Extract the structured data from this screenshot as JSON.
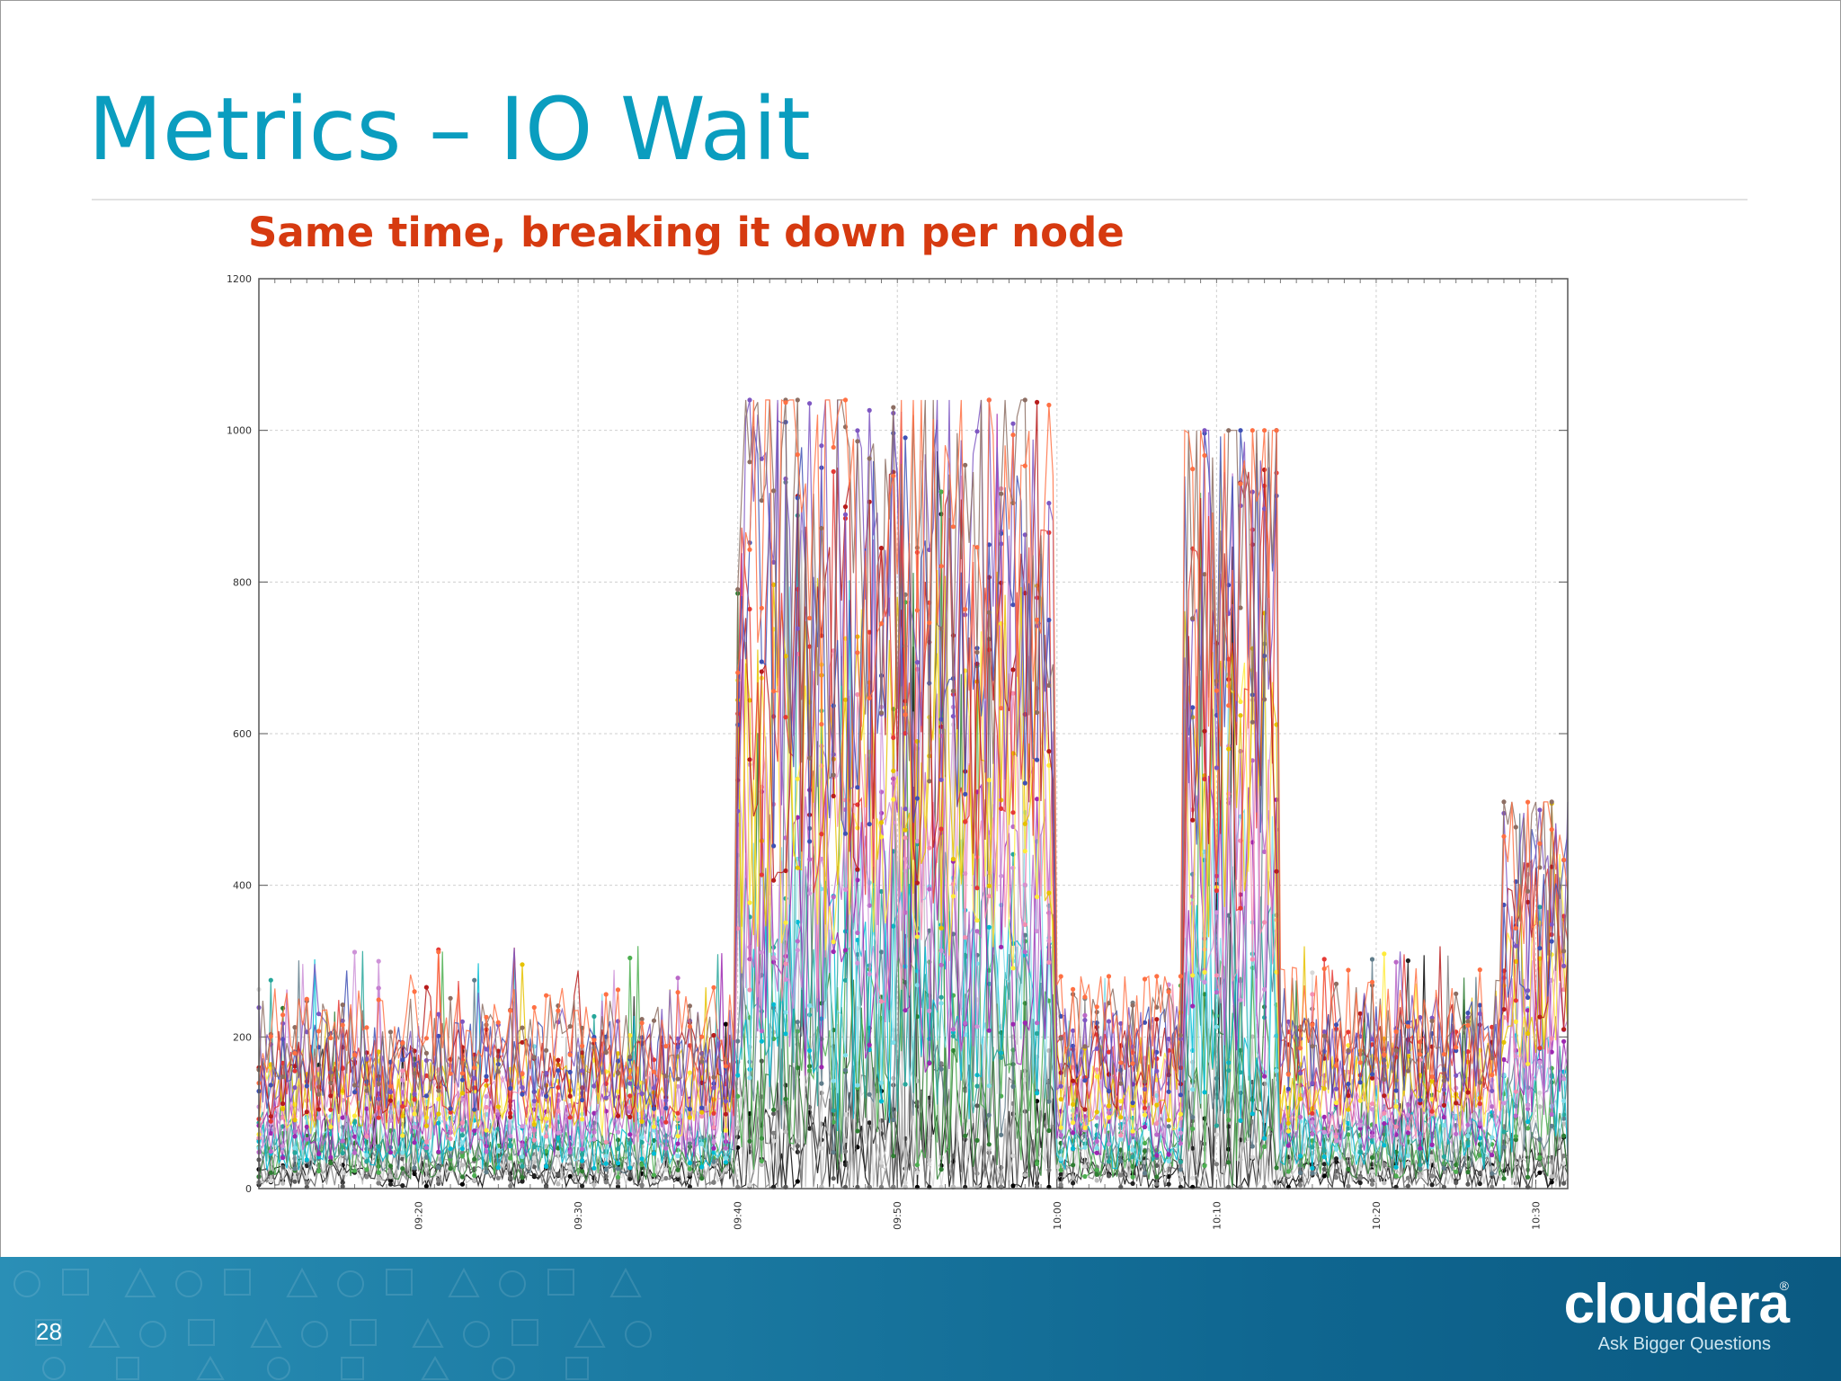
{
  "slide": {
    "title": "Metrics – IO Wait",
    "subtitle": "Same time, breaking it down per node",
    "page_number": "28"
  },
  "logo": {
    "wordmark": "cloudera",
    "registered": "®",
    "tagline": "Ask Bigger Questions"
  },
  "colors": {
    "title": "#0a9dbf",
    "subtitle": "#d63a10",
    "footer": "#1b7aa2"
  },
  "chart_data": {
    "type": "line",
    "title": "",
    "xlabel": "",
    "ylabel": "",
    "ylim": [
      0,
      1200
    ],
    "yticks": [
      "0",
      "200",
      "400",
      "600",
      "800",
      "1000",
      "1200"
    ],
    "xlim": [
      "09:10",
      "10:32"
    ],
    "xticks": [
      "09:20",
      "09:30",
      "09:40",
      "09:50",
      "10:00",
      "10:10",
      "10:20",
      "10:30"
    ],
    "grid": true,
    "legend": "none",
    "series_count": 24,
    "series_colors": [
      "#000000",
      "#222222",
      "#5a5a5a",
      "#808080",
      "#bdbdbd",
      "#d8d8d8",
      "#2e7d32",
      "#4caf50",
      "#607d8b",
      "#00bcd4",
      "#26a69a",
      "#80deea",
      "#9c27b0",
      "#ba68c8",
      "#ce93d8",
      "#f48fb1",
      "#ffeb3b",
      "#e6c200",
      "#e53935",
      "#b71c1c",
      "#3f51b5",
      "#7e57c2",
      "#8d6e63",
      "#ff7043"
    ],
    "phases": [
      {
        "start": "09:10",
        "end": "09:39",
        "typical_range": [
          20,
          200
        ],
        "peak": 320
      },
      {
        "start": "09:40",
        "end": "09:59",
        "typical_range": [
          50,
          900
        ],
        "peak": 1040
      },
      {
        "start": "10:00",
        "end": "10:07",
        "typical_range": [
          20,
          220
        ],
        "peak": 280
      },
      {
        "start": "10:08",
        "end": "10:13",
        "typical_range": [
          40,
          900
        ],
        "peak": 1000
      },
      {
        "start": "10:14",
        "end": "10:27",
        "typical_range": [
          20,
          220
        ],
        "peak": 320
      },
      {
        "start": "10:27",
        "end": "10:32",
        "typical_range": [
          30,
          450
        ],
        "peak": 510
      }
    ]
  }
}
